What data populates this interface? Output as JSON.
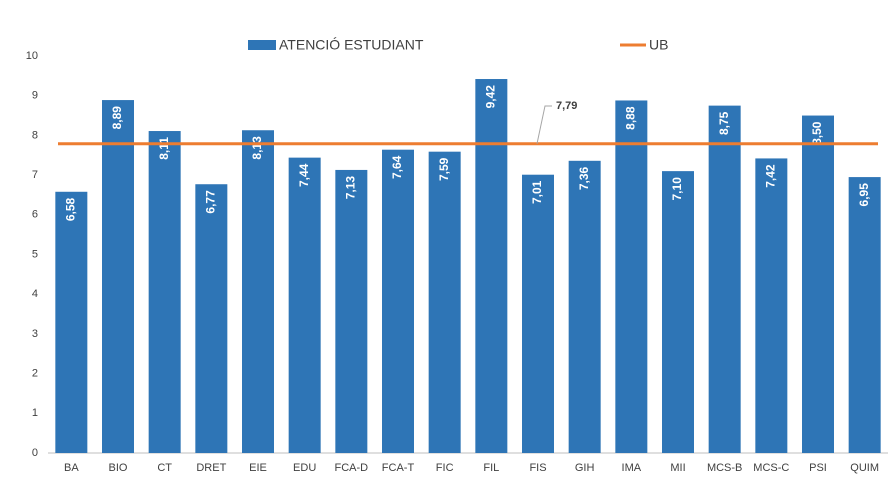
{
  "chart_data": {
    "type": "bar",
    "categories": [
      "BA",
      "BIO",
      "CT",
      "DRET",
      "EIE",
      "EDU",
      "FCA-D",
      "FCA-T",
      "FIC",
      "FIL",
      "FIS",
      "GIH",
      "IMA",
      "MII",
      "MCS-B",
      "MCS-C",
      "PSI",
      "QUIM"
    ],
    "series": [
      {
        "name": "ATENCIÓ ESTUDIANT",
        "color": "#2e75b6",
        "values": [
          6.58,
          8.89,
          8.11,
          6.77,
          8.13,
          7.44,
          7.13,
          7.64,
          7.59,
          9.42,
          7.01,
          7.36,
          8.88,
          7.1,
          8.75,
          7.42,
          8.5,
          6.95
        ],
        "value_labels": [
          "6,58",
          "8,89",
          "8,11",
          "6,77",
          "8,13",
          "7,44",
          "7,13",
          "7,64",
          "7,59",
          "9,42",
          "7,01",
          "7,36",
          "8,88",
          "7,10",
          "8,75",
          "7,42",
          "8,50",
          "6,95"
        ]
      }
    ],
    "reference_line": {
      "name": "UB",
      "value": 7.79,
      "label": "7,79",
      "color": "#ed7d31"
    },
    "ylim": [
      0,
      10
    ],
    "yticks": [
      0,
      1,
      2,
      3,
      4,
      5,
      6,
      7,
      8,
      9,
      10
    ],
    "grid": false
  }
}
